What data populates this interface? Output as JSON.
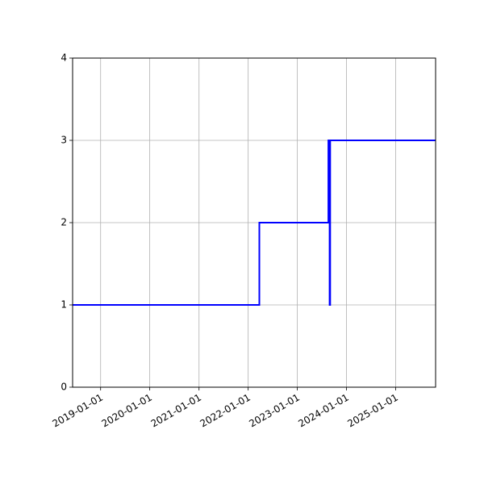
{
  "chart_data": {
    "type": "line",
    "step": true,
    "title": "",
    "xlabel": "",
    "ylabel": "",
    "grid": true,
    "line_color": "#0000ff",
    "grid_color": "#b0b0b0",
    "xlim": [
      "2018-06-07",
      "2025-10-24"
    ],
    "ylim": [
      0,
      4
    ],
    "xticks": [
      "2019-01-01",
      "2020-01-01",
      "2021-01-01",
      "2022-01-01",
      "2023-01-01",
      "2024-01-01",
      "2025-01-01"
    ],
    "yticks": [
      "0",
      "1",
      "2",
      "3",
      "4"
    ],
    "series": [
      {
        "x": [
          "2018-06-07",
          "2022-03-25",
          "2022-03-25",
          "2023-08-20",
          "2023-08-20",
          "2023-08-29",
          "2023-08-29",
          "2023-09-02",
          "2023-09-02",
          "2025-10-24"
        ],
        "y": [
          1,
          1,
          2,
          2,
          3,
          3,
          1,
          1,
          3,
          3
        ]
      }
    ]
  }
}
